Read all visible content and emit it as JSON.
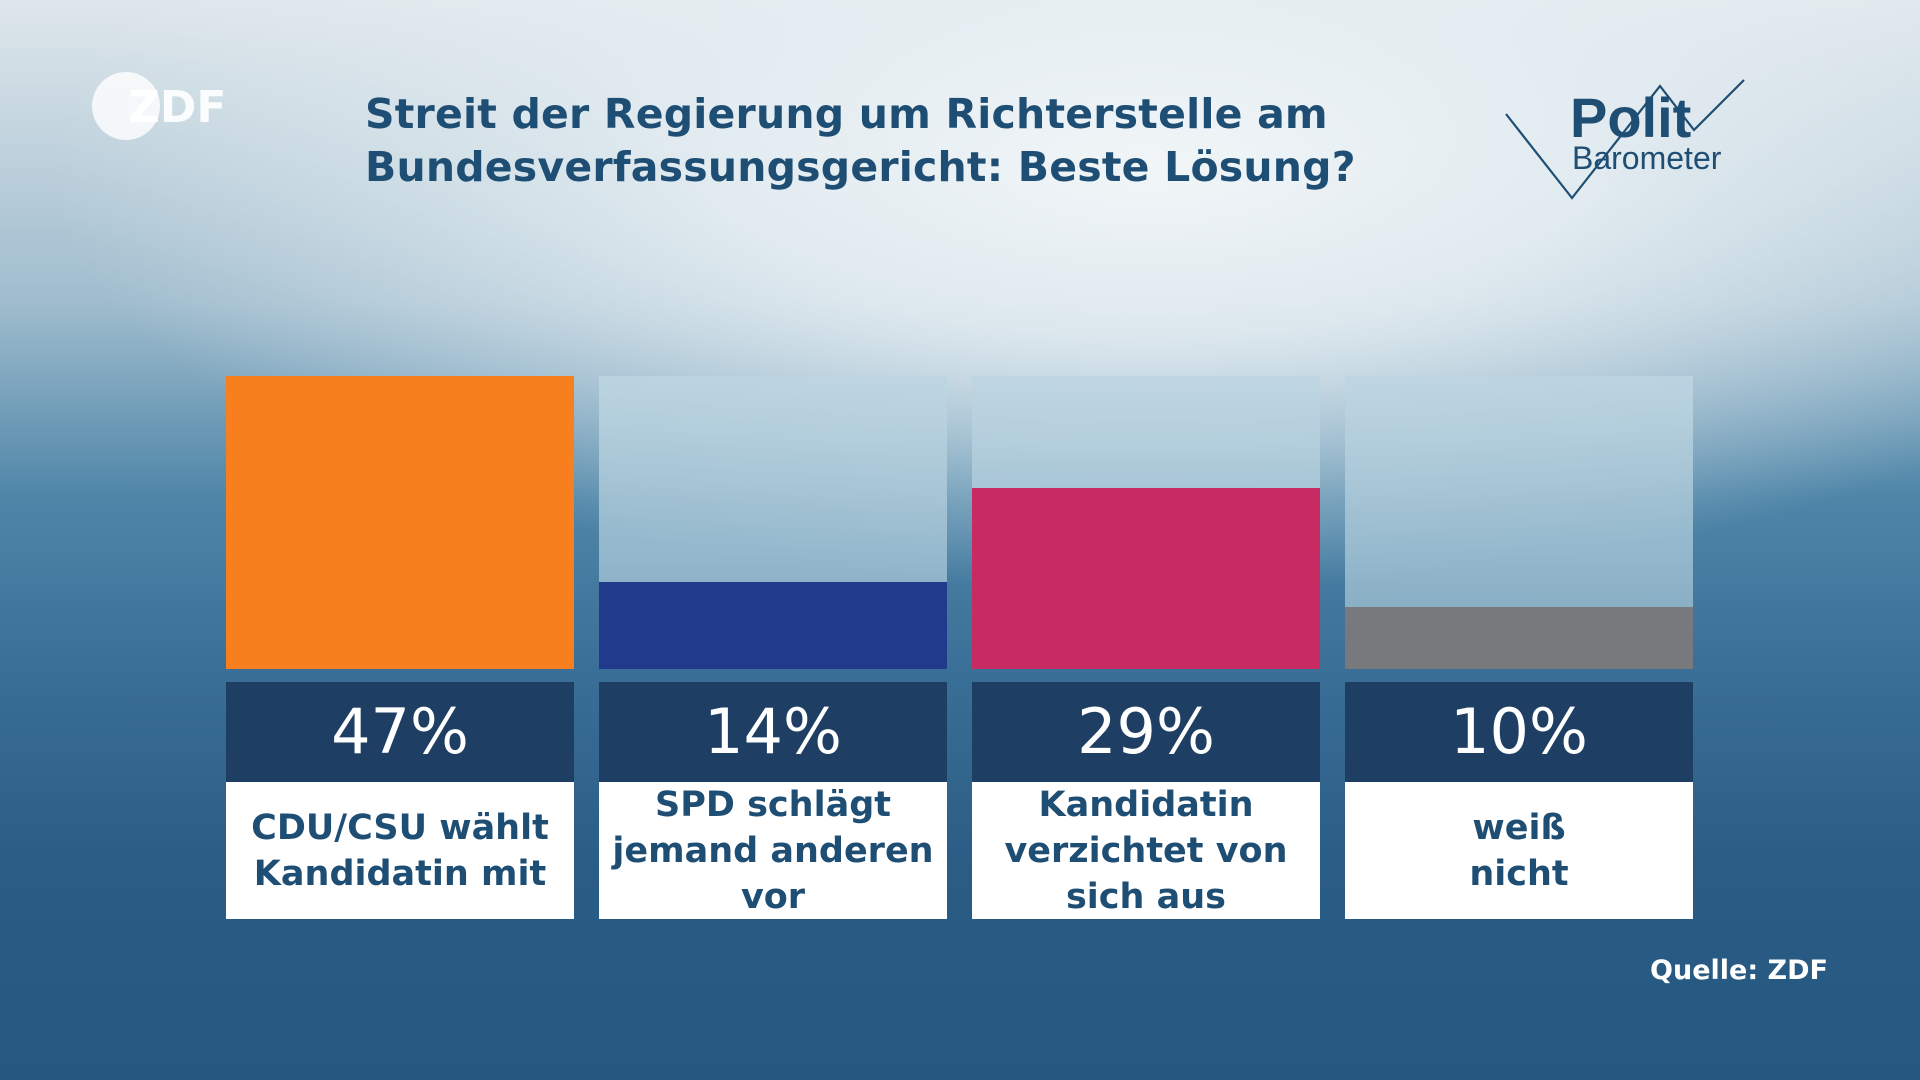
{
  "header": {
    "title_line1": "Streit der Regierung um Richterstelle am",
    "title_line2": "Bundesverfassungsgericht: Beste Lösung?"
  },
  "logo": {
    "text": "ZDF"
  },
  "brand": {
    "polit": "Polit",
    "barometer": "Barometer"
  },
  "colors": {
    "title": "#1f4e74",
    "percent_bg": "#1e3f63",
    "track": "#a9c6d6"
  },
  "chart_data": {
    "type": "bar",
    "title": "Streit der Regierung um Richterstelle am Bundesverfassungsgericht: Beste Lösung?",
    "categories": [
      "CDU/CSU wählt Kandidatin mit",
      "SPD schlägt jemand anderen vor",
      "Kandidatin verzichtet von sich aus",
      "weiß nicht"
    ],
    "values": [
      47,
      14,
      29,
      10
    ],
    "value_labels": [
      "47%",
      "14%",
      "29%",
      "10%"
    ],
    "colors": [
      "#f77f1d",
      "#213a8c",
      "#c82a62",
      "#78797d"
    ],
    "ylim": [
      0,
      47
    ],
    "xlabel": "",
    "ylabel": "",
    "grid": false
  },
  "footer": {
    "source": "Quelle: ZDF"
  }
}
